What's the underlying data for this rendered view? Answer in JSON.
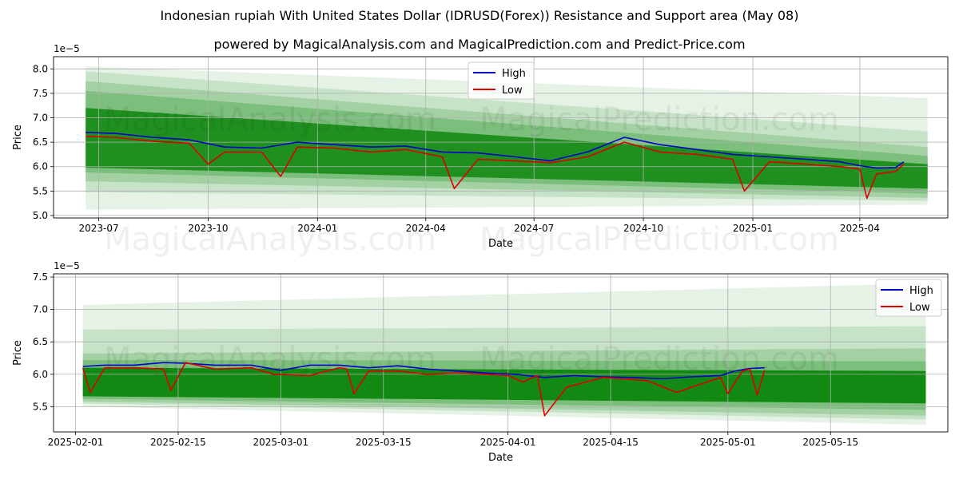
{
  "title": "Indonesian rupiah With United States Dollar (IDRUSD(Forex)) Resistance and Support area (May 08)",
  "subtitle": "powered by MagicalAnalysis.com and MagicalPrediction.com and Predict-Price.com",
  "watermarks": [
    "MagicalAnalysis.com",
    "MagicalPrediction.com"
  ],
  "colors": {
    "high": "#0000cc",
    "low": "#dd0000",
    "band": "#008000",
    "grid": "#b0b0b0"
  },
  "chart_data": [
    {
      "type": "line",
      "xlabel": "Date",
      "ylabel": "Price",
      "exponent_label": "1e−5",
      "xlim": [
        "2023-05-24",
        "2025-06-14"
      ],
      "ylim": [
        4.95,
        8.25
      ],
      "x_ticks": [
        {
          "date": "2023-07-01",
          "label": "2023-07"
        },
        {
          "date": "2023-10-01",
          "label": "2023-10"
        },
        {
          "date": "2024-01-01",
          "label": "2024-01"
        },
        {
          "date": "2024-04-01",
          "label": "2024-04"
        },
        {
          "date": "2024-07-01",
          "label": "2024-07"
        },
        {
          "date": "2024-10-01",
          "label": "2024-10"
        },
        {
          "date": "2025-01-01",
          "label": "2025-01"
        },
        {
          "date": "2025-04-01",
          "label": "2025-04"
        }
      ],
      "y_ticks": [
        5.0,
        5.5,
        6.0,
        6.5,
        7.0,
        7.5,
        8.0
      ],
      "legend": {
        "placement": "top-center",
        "entries": [
          "High",
          "Low"
        ]
      },
      "grid": true,
      "bands": {
        "x": [
          "2023-06-20",
          "2025-05-28"
        ],
        "upper": [
          [
            8.05,
            7.4
          ],
          [
            7.95,
            6.72
          ],
          [
            7.75,
            6.4
          ],
          [
            7.55,
            6.22
          ],
          [
            7.2,
            6.05
          ]
        ],
        "lower": [
          [
            5.12,
            5.22
          ],
          [
            5.48,
            5.3
          ],
          [
            5.7,
            5.36
          ],
          [
            5.88,
            5.45
          ],
          [
            5.98,
            5.55
          ]
        ],
        "opacity": [
          0.1,
          0.13,
          0.18,
          0.24,
          0.75
        ]
      },
      "series": [
        {
          "name": "High",
          "x": [
            "2023-06-20",
            "2023-07-15",
            "2023-08-15",
            "2023-09-15",
            "2023-10-15",
            "2023-11-15",
            "2023-12-15",
            "2024-01-15",
            "2024-02-15",
            "2024-03-15",
            "2024-04-15",
            "2024-05-15",
            "2024-06-15",
            "2024-07-15",
            "2024-08-15",
            "2024-09-15",
            "2024-10-15",
            "2024-11-15",
            "2024-12-15",
            "2025-01-15",
            "2025-02-15",
            "2025-03-15",
            "2025-04-01",
            "2025-04-15",
            "2025-05-01",
            "2025-05-08"
          ],
          "values": [
            6.7,
            6.68,
            6.6,
            6.55,
            6.4,
            6.38,
            6.5,
            6.45,
            6.4,
            6.42,
            6.3,
            6.28,
            6.2,
            6.12,
            6.3,
            6.6,
            6.45,
            6.35,
            6.25,
            6.2,
            6.15,
            6.1,
            6.02,
            5.97,
            5.98,
            6.1
          ]
        },
        {
          "name": "Low",
          "x": [
            "2023-06-20",
            "2023-07-15",
            "2023-08-15",
            "2023-09-15",
            "2023-10-01",
            "2023-10-15",
            "2023-11-15",
            "2023-12-01",
            "2023-12-15",
            "2024-01-15",
            "2024-02-15",
            "2024-03-15",
            "2024-04-15",
            "2024-04-25",
            "2024-05-15",
            "2024-06-15",
            "2024-07-15",
            "2024-08-15",
            "2024-09-15",
            "2024-10-15",
            "2024-11-15",
            "2024-12-15",
            "2024-12-25",
            "2025-01-15",
            "2025-02-15",
            "2025-03-15",
            "2025-04-01",
            "2025-04-07",
            "2025-04-15",
            "2025-05-01",
            "2025-05-08"
          ],
          "values": [
            6.62,
            6.6,
            6.52,
            6.48,
            6.05,
            6.3,
            6.3,
            5.8,
            6.4,
            6.38,
            6.3,
            6.35,
            6.2,
            5.55,
            6.15,
            6.12,
            6.08,
            6.2,
            6.5,
            6.3,
            6.25,
            6.15,
            5.5,
            6.1,
            6.05,
            6.0,
            5.95,
            5.35,
            5.85,
            5.9,
            6.05
          ]
        }
      ]
    },
    {
      "type": "line",
      "xlabel": "Date",
      "ylabel": "Price",
      "exponent_label": "1e−5",
      "xlim": [
        "2025-01-29",
        "2025-05-31"
      ],
      "ylim": [
        5.11,
        7.55
      ],
      "x_ticks": [
        {
          "date": "2025-02-01",
          "label": "2025-02-01"
        },
        {
          "date": "2025-02-15",
          "label": "2025-02-15"
        },
        {
          "date": "2025-03-01",
          "label": "2025-03-01"
        },
        {
          "date": "2025-03-15",
          "label": "2025-03-15"
        },
        {
          "date": "2025-04-01",
          "label": "2025-04-01"
        },
        {
          "date": "2025-04-15",
          "label": "2025-04-15"
        },
        {
          "date": "2025-05-01",
          "label": "2025-05-01"
        },
        {
          "date": "2025-05-15",
          "label": "2025-05-15"
        }
      ],
      "y_ticks": [
        5.5,
        6.0,
        6.5,
        7.0,
        7.5
      ],
      "legend": {
        "placement": "top-right",
        "entries": [
          "High",
          "Low"
        ]
      },
      "grid": true,
      "bands": {
        "x": [
          "2025-02-02",
          "2025-05-28"
        ],
        "upper": [
          [
            7.07,
            7.4
          ],
          [
            6.69,
            6.74
          ],
          [
            6.32,
            6.4
          ],
          [
            6.22,
            6.2
          ],
          [
            6.1,
            6.05
          ]
        ],
        "lower": [
          [
            5.5,
            5.22
          ],
          [
            5.55,
            5.3
          ],
          [
            5.58,
            5.36
          ],
          [
            5.62,
            5.45
          ],
          [
            5.66,
            5.55
          ]
        ],
        "opacity": [
          0.1,
          0.13,
          0.18,
          0.24,
          0.85
        ]
      },
      "series": [
        {
          "name": "High",
          "x": [
            "2025-02-02",
            "2025-02-05",
            "2025-02-09",
            "2025-02-13",
            "2025-02-16",
            "2025-02-20",
            "2025-02-25",
            "2025-03-01",
            "2025-03-05",
            "2025-03-09",
            "2025-03-13",
            "2025-03-17",
            "2025-03-21",
            "2025-03-25",
            "2025-03-29",
            "2025-04-02",
            "2025-04-06",
            "2025-04-10",
            "2025-04-14",
            "2025-04-18",
            "2025-04-22",
            "2025-04-26",
            "2025-04-30",
            "2025-05-02",
            "2025-05-04",
            "2025-05-06"
          ],
          "values": [
            6.12,
            6.14,
            6.14,
            6.18,
            6.17,
            6.14,
            6.14,
            6.06,
            6.14,
            6.14,
            6.1,
            6.13,
            6.08,
            6.05,
            6.02,
            6.0,
            5.95,
            5.98,
            5.96,
            5.95,
            5.93,
            5.96,
            5.98,
            6.05,
            6.09,
            6.1
          ]
        },
        {
          "name": "Low",
          "x": [
            "2025-02-02",
            "2025-02-03",
            "2025-02-05",
            "2025-02-09",
            "2025-02-13",
            "2025-02-14",
            "2025-02-16",
            "2025-02-20",
            "2025-02-25",
            "2025-02-28",
            "2025-03-05",
            "2025-03-09",
            "2025-03-10",
            "2025-03-11",
            "2025-03-13",
            "2025-03-17",
            "2025-03-21",
            "2025-03-25",
            "2025-03-29",
            "2025-04-01",
            "2025-04-03",
            "2025-04-05",
            "2025-04-06",
            "2025-04-09",
            "2025-04-14",
            "2025-04-18",
            "2025-04-20",
            "2025-04-24",
            "2025-04-30",
            "2025-05-01",
            "2025-05-03",
            "2025-05-04",
            "2025-05-05",
            "2025-05-06"
          ],
          "values": [
            6.1,
            5.72,
            6.1,
            6.1,
            6.08,
            5.75,
            6.18,
            6.08,
            6.1,
            6.0,
            5.98,
            6.1,
            6.08,
            5.7,
            6.05,
            6.05,
            6.0,
            6.02,
            6.0,
            5.98,
            5.88,
            5.98,
            5.36,
            5.8,
            5.95,
            5.92,
            5.9,
            5.72,
            5.95,
            5.7,
            6.05,
            6.08,
            5.68,
            6.06
          ]
        }
      ]
    }
  ]
}
